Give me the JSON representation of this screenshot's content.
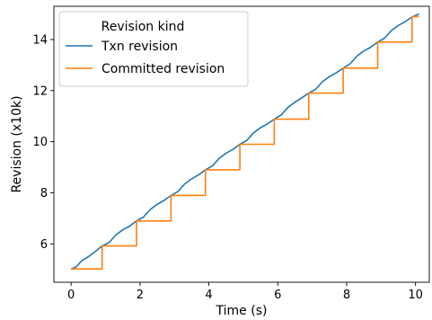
{
  "chart_data": {
    "type": "line",
    "title": "",
    "xlabel": "Time (s)",
    "ylabel": "Revision (x10k)",
    "xlim": [
      -0.5,
      10.4
    ],
    "ylim": [
      4.5,
      15.3
    ],
    "x_ticks": [
      0,
      2,
      4,
      6,
      8,
      10
    ],
    "x_tick_labels": [
      "0",
      "2",
      "4",
      "6",
      "8",
      "10"
    ],
    "y_ticks": [
      6,
      8,
      10,
      12,
      14
    ],
    "y_tick_labels": [
      "6",
      "8",
      "10",
      "12",
      "14"
    ],
    "grid": false,
    "legend": {
      "title": "Revision kind",
      "position": "top-left"
    },
    "series": [
      {
        "name": "Txn revision",
        "color": "#1f77b4",
        "x": [
          0.0,
          0.15,
          0.3,
          0.5,
          0.7,
          0.9,
          1.1,
          1.3,
          1.5,
          1.7,
          1.9,
          2.1,
          2.3,
          2.5,
          2.7,
          2.9,
          3.1,
          3.3,
          3.5,
          3.7,
          3.9,
          4.1,
          4.3,
          4.5,
          4.7,
          4.9,
          5.1,
          5.3,
          5.5,
          5.7,
          5.9,
          6.1,
          6.3,
          6.5,
          6.7,
          6.9,
          7.1,
          7.3,
          7.5,
          7.7,
          7.9,
          8.1,
          8.3,
          8.5,
          8.7,
          8.9,
          9.1,
          9.3,
          9.5,
          9.7,
          9.9,
          10.1
        ],
        "y": [
          5.02,
          5.1,
          5.33,
          5.5,
          5.7,
          5.92,
          6.05,
          6.35,
          6.55,
          6.7,
          6.9,
          7.05,
          7.35,
          7.55,
          7.7,
          7.9,
          8.05,
          8.35,
          8.55,
          8.7,
          8.9,
          9.05,
          9.35,
          9.55,
          9.7,
          9.9,
          10.05,
          10.35,
          10.55,
          10.7,
          10.88,
          11.05,
          11.35,
          11.55,
          11.72,
          11.9,
          12.05,
          12.35,
          12.55,
          12.7,
          12.88,
          13.05,
          13.35,
          13.55,
          13.7,
          13.9,
          14.05,
          14.35,
          14.55,
          14.7,
          14.88,
          15.0
        ]
      },
      {
        "name": "Committed revision",
        "color": "#ff7f0e",
        "x": [
          0.0,
          0.9,
          0.9,
          1.9,
          1.9,
          2.9,
          2.9,
          3.9,
          3.9,
          4.9,
          4.9,
          5.9,
          5.9,
          6.9,
          6.9,
          7.9,
          7.9,
          8.9,
          8.9,
          9.9,
          9.9,
          10.1
        ],
        "y": [
          5.02,
          5.02,
          5.92,
          5.92,
          6.9,
          6.9,
          7.9,
          7.9,
          8.9,
          8.9,
          9.9,
          9.9,
          10.88,
          10.88,
          11.9,
          11.9,
          12.88,
          12.88,
          13.9,
          13.9,
          14.9,
          14.9
        ]
      }
    ]
  }
}
